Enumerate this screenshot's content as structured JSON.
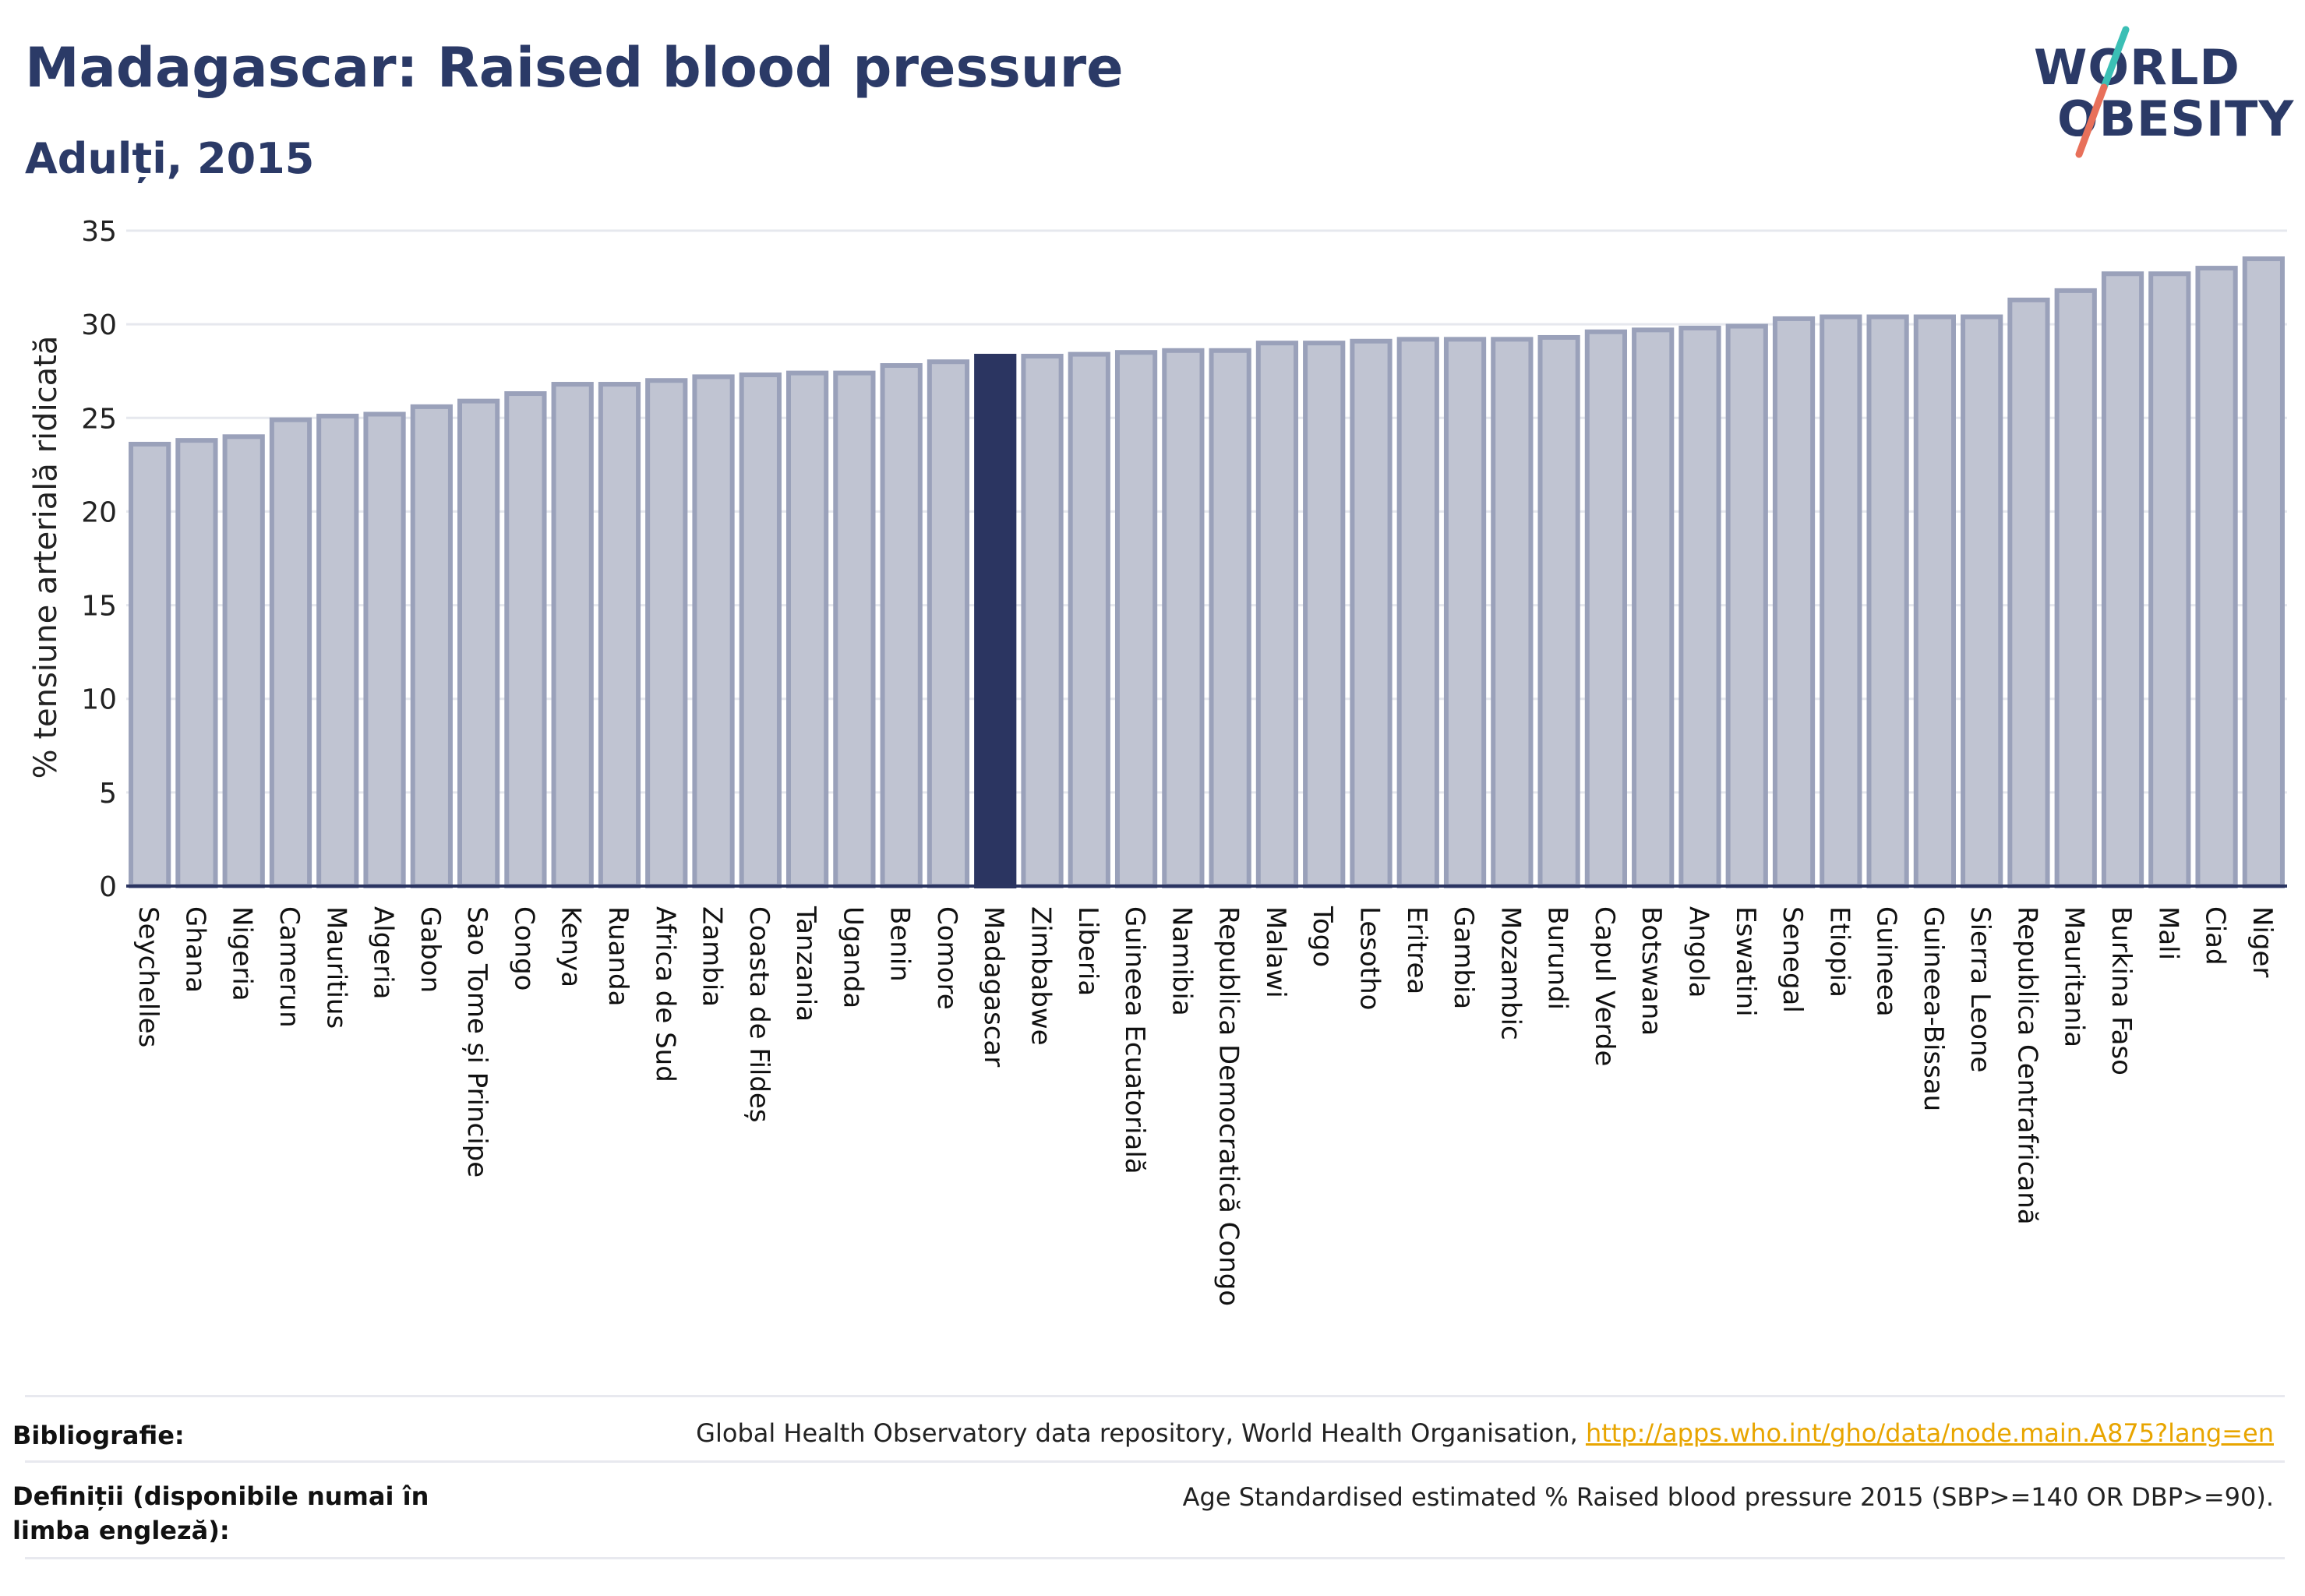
{
  "header": {
    "title": "Madagascar: Raised blood pressure",
    "subtitle": "Adulți, 2015"
  },
  "logo": {
    "line1": "WORLD",
    "line2": "OBESITY",
    "colors": [
      "#2b3a67",
      "#3bbfb5",
      "#e8705a"
    ]
  },
  "chart_data": {
    "type": "bar",
    "title": "Madagascar: Raised blood pressure",
    "subtitle": "Adulți, 2015",
    "xlabel": "",
    "ylabel": "% tensiune arterială ridicată",
    "ylim": [
      0,
      35
    ],
    "yticks": [
      0,
      5,
      10,
      15,
      20,
      25,
      30,
      35
    ],
    "grid": true,
    "highlight": "Madagascar",
    "colors": {
      "bar": "#c0c4d2",
      "bar_border": "#9aa1ba",
      "highlight": "#2b3561",
      "grid": "#e6e8ee",
      "axis": "#2b3561"
    },
    "categories": [
      "Seychelles",
      "Ghana",
      "Nigeria",
      "Camerun",
      "Mauritius",
      "Algeria",
      "Gabon",
      "Sao Tome și Principe",
      "Congo",
      "Kenya",
      "Ruanda",
      "Africa de Sud",
      "Zambia",
      "Coasta de Fildeș",
      "Tanzania",
      "Uganda",
      "Benin",
      "Comore",
      "Madagascar",
      "Zimbabwe",
      "Liberia",
      "Guineea Ecuatorială",
      "Namibia",
      "Republica Democratică Congo",
      "Malawi",
      "Togo",
      "Lesotho",
      "Eritrea",
      "Gambia",
      "Mozambic",
      "Burundi",
      "Capul Verde",
      "Botswana",
      "Angola",
      "Eswatini",
      "Senegal",
      "Etiopia",
      "Guineea",
      "Guineea-Bissau",
      "Sierra Leone",
      "Republica Centrafricană",
      "Mauritania",
      "Burkina Faso",
      "Mali",
      "Ciad",
      "Niger"
    ],
    "values": [
      23.6,
      23.8,
      24.0,
      24.9,
      25.1,
      25.2,
      25.6,
      25.9,
      26.3,
      26.8,
      26.8,
      27.0,
      27.2,
      27.3,
      27.4,
      27.4,
      27.8,
      28.0,
      28.3,
      28.3,
      28.4,
      28.5,
      28.6,
      28.6,
      29.0,
      29.0,
      29.1,
      29.2,
      29.2,
      29.2,
      29.3,
      29.6,
      29.7,
      29.8,
      29.9,
      30.3,
      30.4,
      30.4,
      30.4,
      30.4,
      31.3,
      31.8,
      32.7,
      32.7,
      33.0,
      33.5
    ]
  },
  "footer": {
    "bibliography_label": "Bibliografie:",
    "bibliography_text": "Global Health Observatory data repository, World Health Organisation, ",
    "bibliography_link": "http://apps.who.int/gho/data/node.main.A875?lang=en",
    "definitions_label": "Definiții (disponibile numai în limba engleză):",
    "definitions_text": "Age Standardised estimated % Raised blood pressure 2015 (SBP>=140 OR DBP>=90)."
  }
}
